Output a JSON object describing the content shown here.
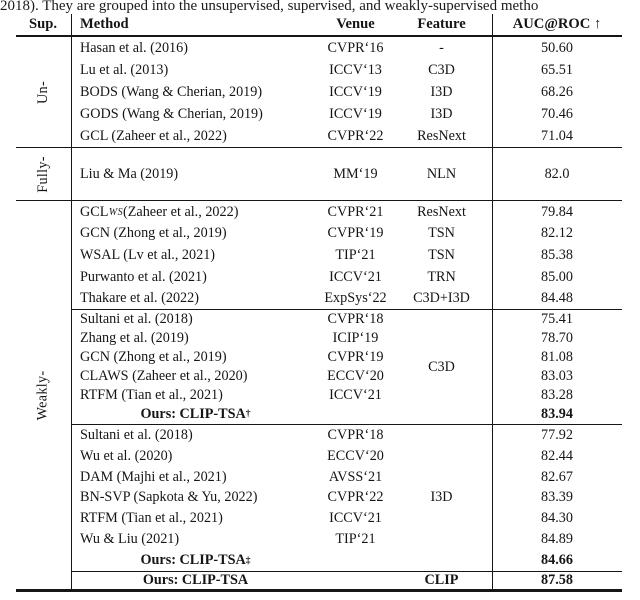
{
  "caption": "2018). They are grouped into the unsupervised, supervised, and weakly-supervised metho",
  "table": {
    "header": {
      "sup": "Sup.",
      "method": "Method",
      "venue": "Venue",
      "feature": "Feature",
      "auc": "AUC@ROC ↑"
    },
    "groups": [
      {
        "label": "Un-",
        "blocks": [
          {
            "rows": [
              {
                "method": "Hasan et al. (2016)",
                "venue": "CVPR‘16",
                "feature": "-",
                "auc": "50.60"
              },
              {
                "method": "Lu et al. (2013)",
                "venue": "ICCV‘13",
                "feature": "C3D",
                "auc": "65.51"
              },
              {
                "method": "BODS (Wang & Cherian, 2019)",
                "venue": "ICCV‘19",
                "feature": "I3D",
                "auc": "68.26"
              },
              {
                "method": "GODS (Wang & Cherian, 2019)",
                "venue": "ICCV‘19",
                "feature": "I3D",
                "auc": "70.46"
              },
              {
                "method": "GCL (Zaheer et al., 2022)",
                "venue": "CVPR‘22",
                "feature": "ResNext",
                "auc": "71.04"
              }
            ]
          }
        ]
      },
      {
        "label": "Fully-",
        "blocks": [
          {
            "rows": [
              {
                "method": "Liu & Ma (2019)",
                "venue": "MM‘19",
                "feature": "NLN",
                "auc": "82.0"
              }
            ]
          }
        ]
      },
      {
        "label": "Weakly-",
        "blocks": [
          {
            "rows": [
              {
                "method": "GCL",
                "method_sub": "WS",
                "method_tail": " (Zaheer et al., 2022)",
                "venue": "CVPR‘21",
                "feature": "ResNext",
                "auc": "79.84"
              },
              {
                "method": "GCN (Zhong et al., 2019)",
                "venue": "CVPR‘19",
                "feature": "TSN",
                "auc": "82.12"
              },
              {
                "method": "WSAL (Lv et al., 2021)",
                "venue": "TIP‘21",
                "feature": "TSN",
                "auc": "85.38"
              },
              {
                "method": "Purwanto et al. (2021)",
                "venue": "ICCV‘21",
                "feature": "TRN",
                "auc": "85.00"
              },
              {
                "method": "Thakare et al. (2022)",
                "venue": "ExpSys‘22",
                "feature": "C3D+I3D",
                "auc": "84.48"
              }
            ]
          },
          {
            "feature_span": "C3D",
            "rows": [
              {
                "method": "Sultani et al. (2018)",
                "venue": "CVPR‘18",
                "auc": "75.41"
              },
              {
                "method": "Zhang et al. (2019)",
                "venue": "ICIP‘19",
                "auc": "78.70"
              },
              {
                "method": "GCN (Zhong et al., 2019)",
                "venue": "CVPR‘19",
                "auc": "81.08"
              },
              {
                "method": "CLAWS (Zaheer et al., 2020)",
                "venue": "ECCV‘20",
                "auc": "83.03"
              },
              {
                "method": "RTFM (Tian et al., 2021)",
                "venue": "ICCV‘21",
                "auc": "83.28"
              },
              {
                "method": "Ours: CLIP-TSA",
                "method_sup": "†",
                "bold": true,
                "center": true,
                "venue": "",
                "auc": "83.94"
              }
            ]
          },
          {
            "feature_span": "I3D",
            "rows": [
              {
                "method": "Sultani et al. (2018)",
                "venue": "CVPR‘18",
                "auc": "77.92"
              },
              {
                "method": "Wu et al. (2020)",
                "venue": "ECCV‘20",
                "auc": "82.44"
              },
              {
                "method": "DAM (Majhi et al., 2021)",
                "venue": "AVSS‘21",
                "auc": "82.67"
              },
              {
                "method": "BN-SVP (Sapkota & Yu, 2022)",
                "venue": "CVPR‘22",
                "auc": "83.39"
              },
              {
                "method": "RTFM (Tian et al., 2021)",
                "venue": "ICCV‘21",
                "auc": "84.30"
              },
              {
                "method": "Wu & Liu (2021)",
                "venue": "TIP‘21",
                "auc": "84.89"
              },
              {
                "method": "Ours: CLIP-TSA",
                "method_sup": "‡",
                "bold": true,
                "center": true,
                "venue": "",
                "auc": "84.66"
              }
            ]
          },
          {
            "rows": [
              {
                "method": "Ours: CLIP-TSA",
                "bold": true,
                "center": true,
                "venue": "",
                "feature": "CLIP",
                "auc": "87.58"
              }
            ]
          }
        ]
      }
    ]
  },
  "colors": {
    "background": "#ffffff",
    "text": "#151515",
    "rule": "#161616"
  }
}
